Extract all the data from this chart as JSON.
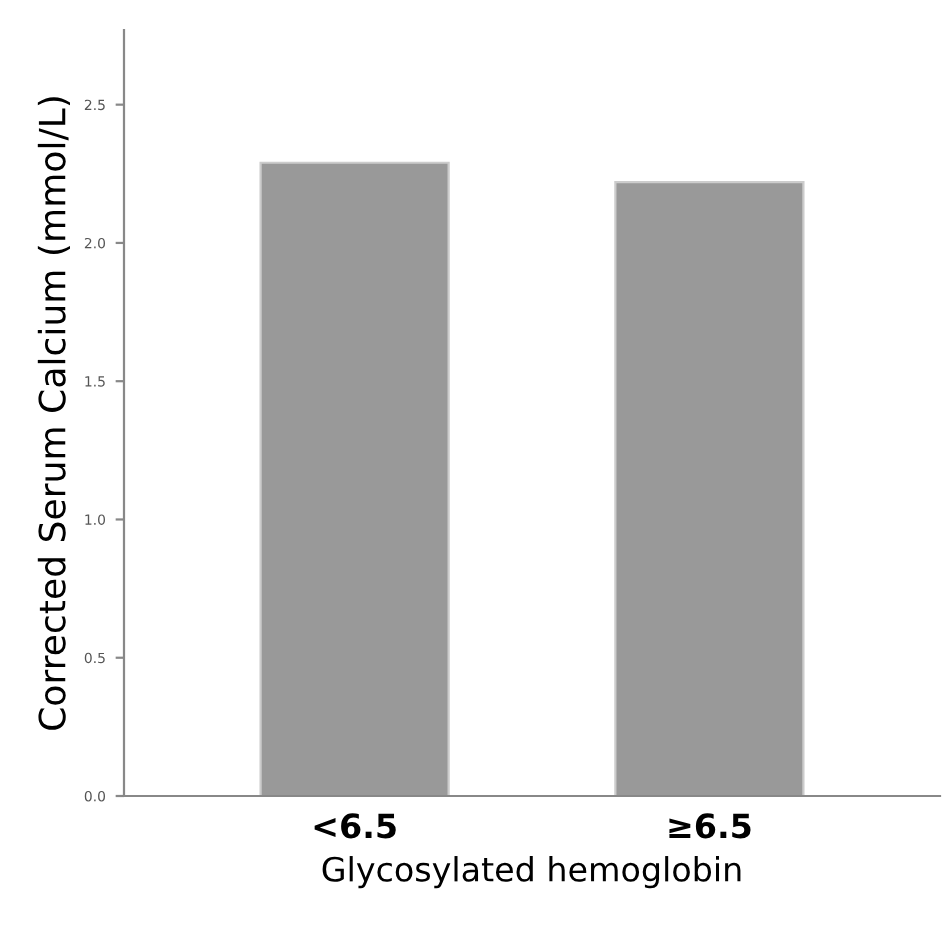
{
  "chart_data": {
    "type": "bar",
    "xlabel": "Glycosylated hemoglobin",
    "ylabel": "Corrected Serum Calcium (mmol/L)",
    "categories": [
      "<6.5",
      "≥6.5"
    ],
    "values": [
      2.29,
      2.22
    ],
    "color": "#999999",
    "ylim": [
      0,
      2.77
    ],
    "yticks": [
      {
        "value": 0,
        "label": "0.0"
      },
      {
        "value": 0.5,
        "label": "0.5"
      },
      {
        "value": 1.0,
        "label": "1.0"
      },
      {
        "value": 1.5,
        "label": "1.5"
      },
      {
        "value": 2.0,
        "label": "2.0"
      },
      {
        "value": 2.5,
        "label": "2.5"
      }
    ],
    "grid": false
  }
}
